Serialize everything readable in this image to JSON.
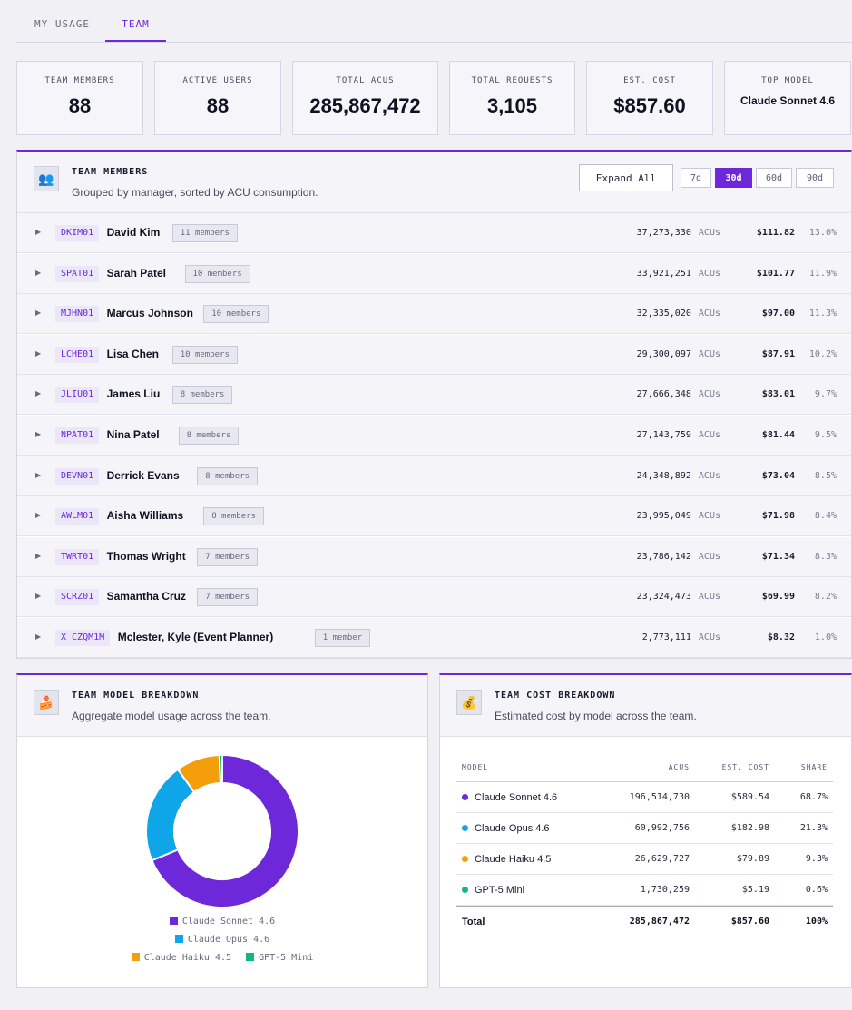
{
  "tabs": [
    {
      "label": "MY USAGE",
      "active": false
    },
    {
      "label": "TEAM",
      "active": true
    }
  ],
  "stats": [
    {
      "label": "TEAM MEMBERS",
      "value": "88"
    },
    {
      "label": "ACTIVE USERS",
      "value": "88"
    },
    {
      "label": "TOTAL ACUS",
      "value": "285,867,472"
    },
    {
      "label": "TOTAL REQUESTS",
      "value": "3,105"
    },
    {
      "label": "EST. COST",
      "value": "$857.60"
    },
    {
      "label": "TOP MODEL",
      "value": "Claude Sonnet 4.6"
    }
  ],
  "members_panel": {
    "icon": "people-icon",
    "title": "TEAM MEMBERS",
    "subtitle": "Grouped by manager, sorted by ACU consumption.",
    "expand_label": "Expand All",
    "ranges": [
      {
        "label": "7d",
        "active": false
      },
      {
        "label": "30d",
        "active": true
      },
      {
        "label": "60d",
        "active": false
      },
      {
        "label": "90d",
        "active": false
      }
    ],
    "acu_unit": "ACUs",
    "managers": [
      {
        "code": "DKIM01",
        "name": "David Kim",
        "count": "11 members",
        "acus": "37,273,330",
        "cost": "$111.82",
        "share": "13.0%"
      },
      {
        "code": "SPAT01",
        "name": "Sarah Patel",
        "count": "10 members",
        "acus": "33,921,251",
        "cost": "$101.77",
        "share": "11.9%"
      },
      {
        "code": "MJHN01",
        "name": "Marcus Johnson",
        "count": "10 members",
        "acus": "32,335,020",
        "cost": "$97.00",
        "share": "11.3%"
      },
      {
        "code": "LCHE01",
        "name": "Lisa Chen",
        "count": "10 members",
        "acus": "29,300,097",
        "cost": "$87.91",
        "share": "10.2%"
      },
      {
        "code": "JLIU01",
        "name": "James Liu",
        "count": "8 members",
        "acus": "27,666,348",
        "cost": "$83.01",
        "share": "9.7%"
      },
      {
        "code": "NPAT01",
        "name": "Nina Patel",
        "count": "8 members",
        "acus": "27,143,759",
        "cost": "$81.44",
        "share": "9.5%"
      },
      {
        "code": "DEVN01",
        "name": "Derrick Evans",
        "count": "8 members",
        "acus": "24,348,892",
        "cost": "$73.04",
        "share": "8.5%"
      },
      {
        "code": "AWLM01",
        "name": "Aisha Williams",
        "count": "8 members",
        "acus": "23,995,049",
        "cost": "$71.98",
        "share": "8.4%"
      },
      {
        "code": "TWRT01",
        "name": "Thomas Wright",
        "count": "7 members",
        "acus": "23,786,142",
        "cost": "$71.34",
        "share": "8.3%"
      },
      {
        "code": "SCRZ01",
        "name": "Samantha Cruz",
        "count": "7 members",
        "acus": "23,324,473",
        "cost": "$69.99",
        "share": "8.2%"
      },
      {
        "code": "X_CZQM1M",
        "name": "Mclester, Kyle (Event Planner)",
        "count": "1 member",
        "acus": "2,773,111",
        "cost": "$8.32",
        "share": "1.0%"
      }
    ]
  },
  "model_panel": {
    "icon": "cake-icon",
    "title": "TEAM MODEL BREAKDOWN",
    "subtitle": "Aggregate model usage across the team."
  },
  "cost_panel": {
    "icon": "money-bag-icon",
    "title": "TEAM COST BREAKDOWN",
    "subtitle": "Estimated cost by model across the team.",
    "columns": [
      "MODEL",
      "ACUS",
      "EST. COST",
      "SHARE"
    ],
    "rows": [
      {
        "model": "Claude Sonnet 4.6",
        "color": "#6d28d9",
        "acus": "196,514,730",
        "cost": "$589.54",
        "share": "68.7%"
      },
      {
        "model": "Claude Opus 4.6",
        "color": "#0ea5e9",
        "acus": "60,992,756",
        "cost": "$182.98",
        "share": "21.3%"
      },
      {
        "model": "Claude Haiku 4.5",
        "color": "#f59e0b",
        "acus": "26,629,727",
        "cost": "$79.89",
        "share": "9.3%"
      },
      {
        "model": "GPT-5 Mini",
        "color": "#10b981",
        "acus": "1,730,259",
        "cost": "$5.19",
        "share": "0.6%"
      }
    ],
    "total": {
      "label": "Total",
      "acus": "285,867,472",
      "cost": "$857.60",
      "share": "100%"
    }
  },
  "chart_data": {
    "type": "pie",
    "categories": [
      "Claude Sonnet 4.6",
      "Claude Opus 4.6",
      "Claude Haiku 4.5",
      "GPT-5 Mini"
    ],
    "values": [
      196514730,
      60992756,
      26629727,
      1730259
    ],
    "colors": [
      "#6d28d9",
      "#0ea5e9",
      "#f59e0b",
      "#10b981"
    ],
    "donut": true,
    "legend_position": "bottom"
  }
}
